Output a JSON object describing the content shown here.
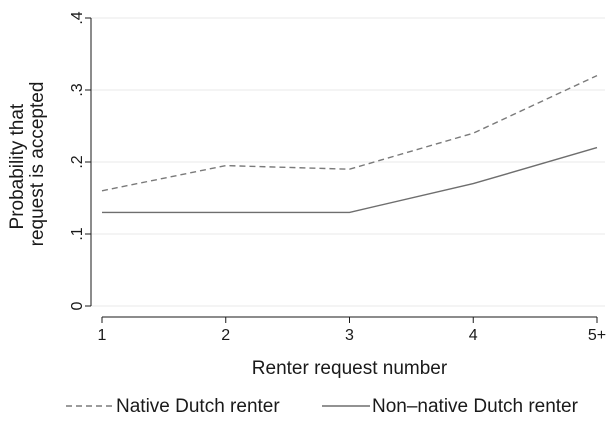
{
  "chart_data": {
    "type": "line",
    "xlabel": "Renter request number",
    "ylabel_lines": [
      "Probability that",
      "request is accepted"
    ],
    "categories": [
      "1",
      "2",
      "3",
      "4",
      "5+"
    ],
    "ylim": [
      0,
      0.4
    ],
    "yticks": [
      0,
      0.1,
      0.2,
      0.3,
      0.4
    ],
    "ytick_labels": [
      "0",
      ".1",
      ".2",
      ".3",
      ".4"
    ],
    "grid": true,
    "legend_position": "bottom",
    "series": [
      {
        "name": "Native Dutch renter",
        "style": "dashed",
        "color": "#7a7a7a",
        "values": [
          0.16,
          0.195,
          0.19,
          0.24,
          0.32
        ]
      },
      {
        "name": "Non–native Dutch renter",
        "style": "solid",
        "color": "#6e6e6e",
        "values": [
          0.13,
          0.13,
          0.13,
          0.17,
          0.22
        ]
      }
    ]
  }
}
